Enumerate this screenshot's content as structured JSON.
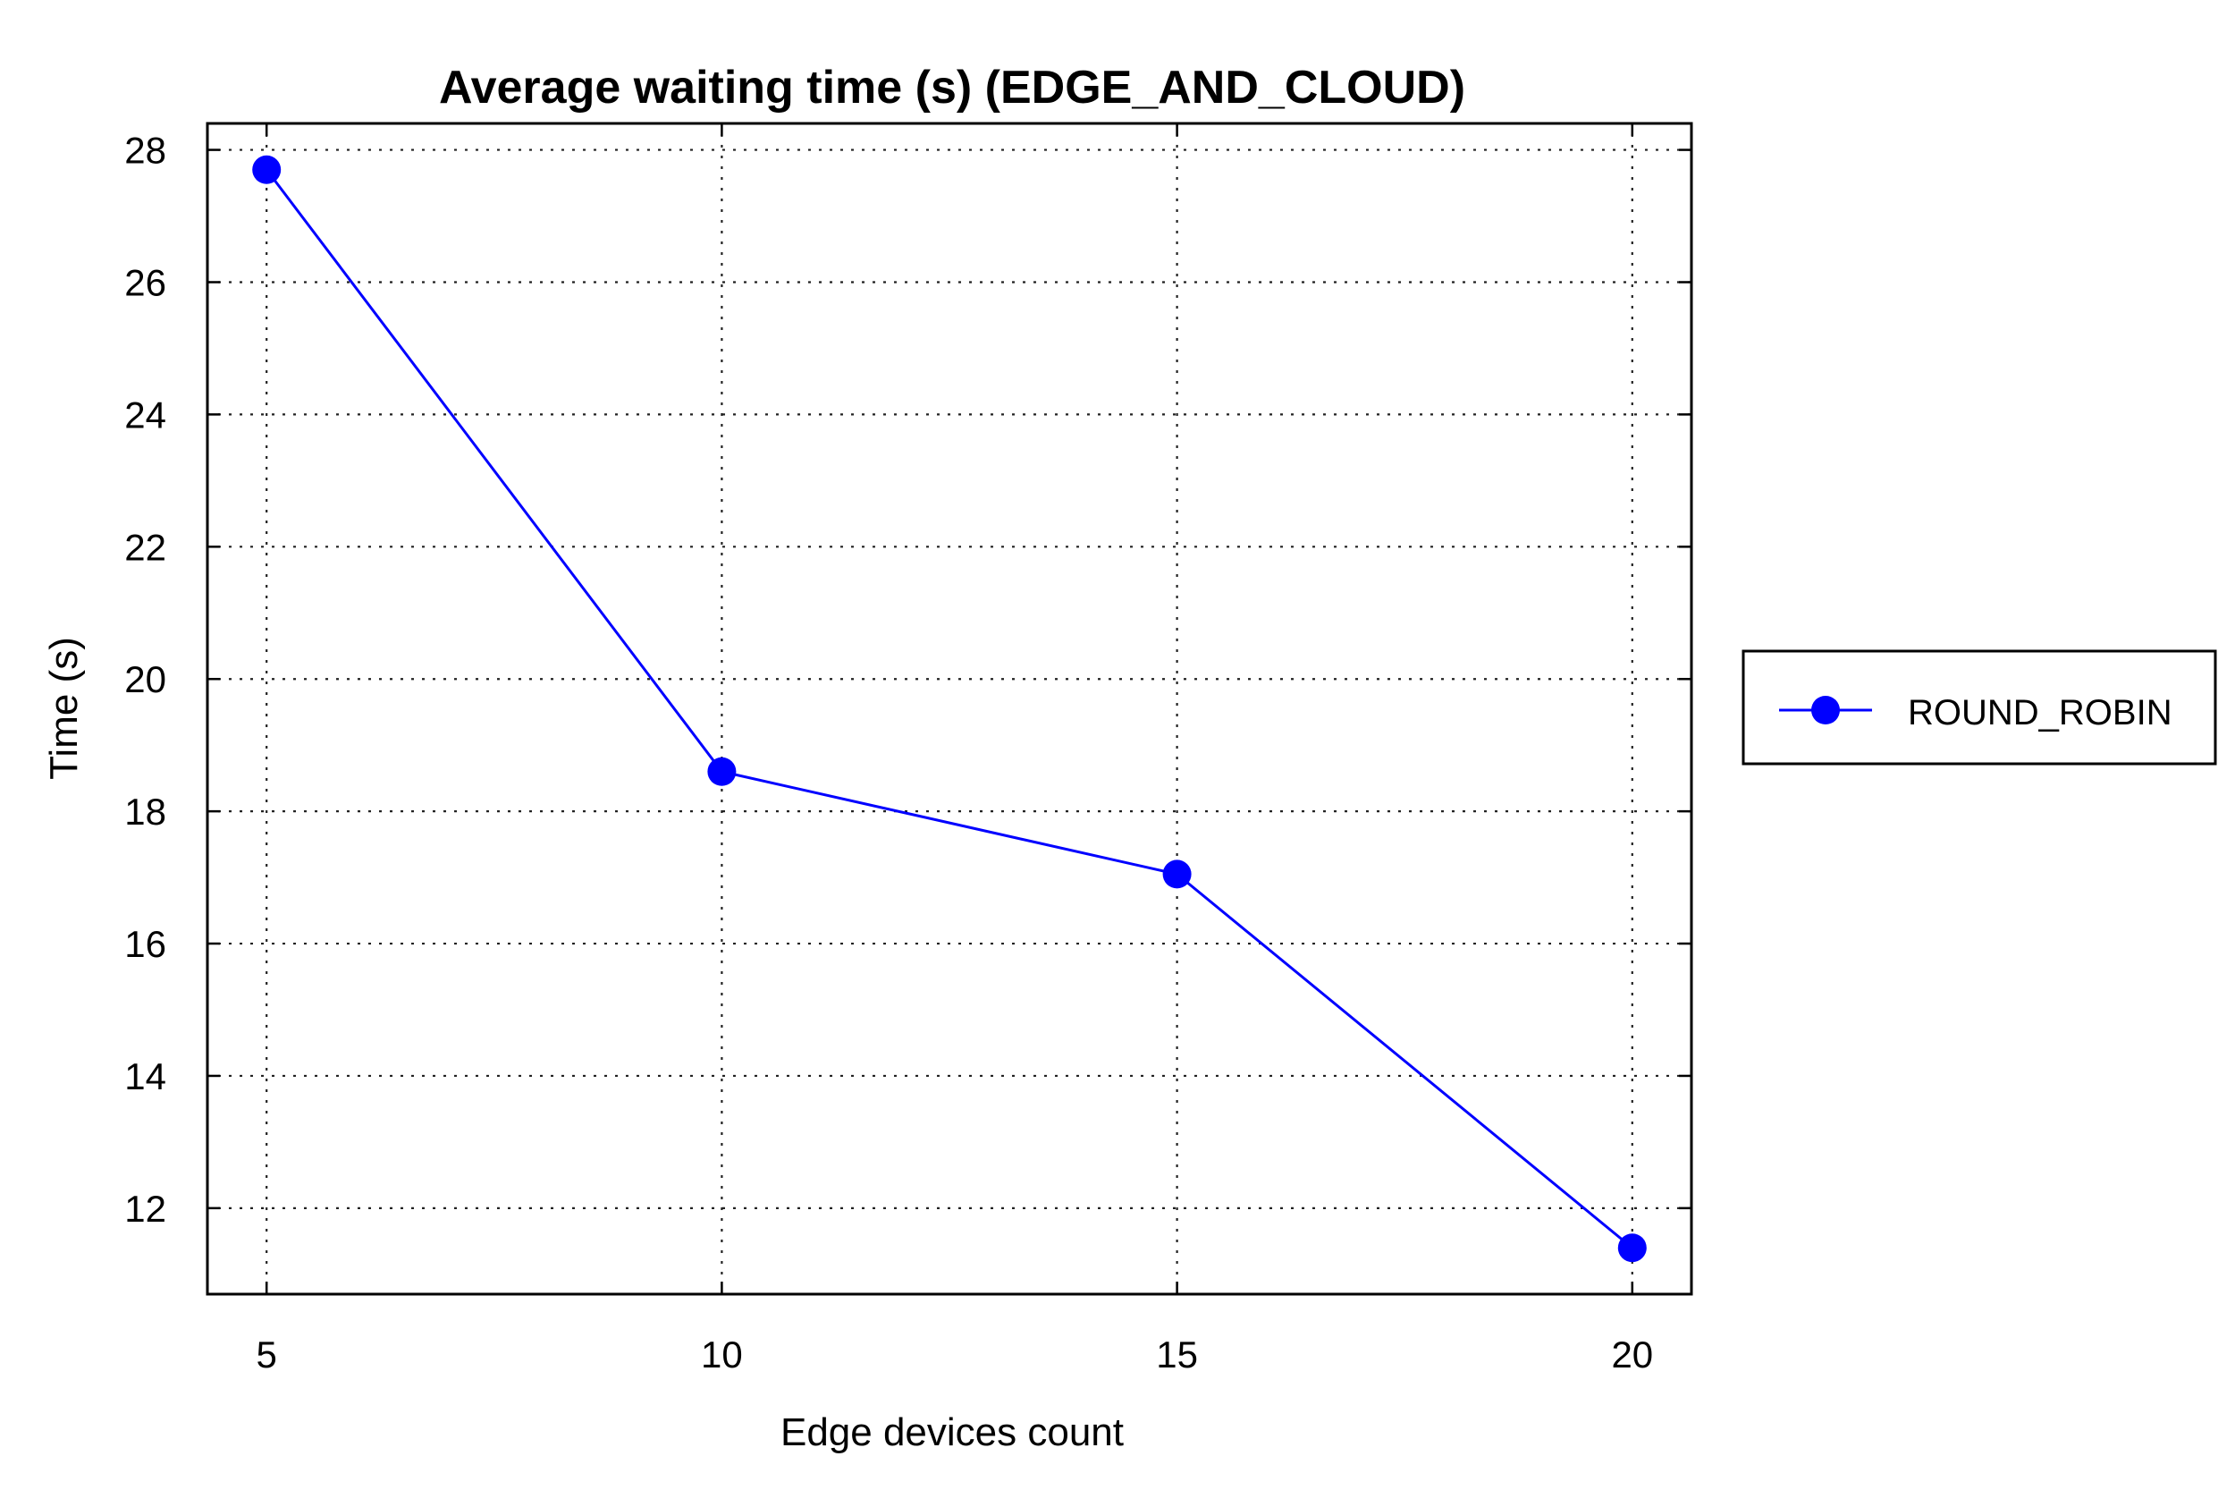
{
  "chart_data": {
    "type": "line",
    "title": "Average waiting time (s) (EDGE_AND_CLOUD)",
    "xlabel": "Edge devices count",
    "ylabel": "Time (s)",
    "x": [
      5,
      10,
      15,
      20
    ],
    "xticks": [
      "5",
      "10",
      "15",
      "20"
    ],
    "xlim": [
      4.35,
      20.65
    ],
    "yticks": [
      12,
      14,
      16,
      18,
      20,
      22,
      24,
      26,
      28
    ],
    "ylim": [
      10.7,
      28.4
    ],
    "grid": true,
    "legend_position": "right",
    "series": [
      {
        "name": "ROUND_ROBIN",
        "values": [
          27.7,
          18.6,
          17.05,
          11.4
        ],
        "color": "#0000ff",
        "marker": "circle"
      }
    ]
  }
}
